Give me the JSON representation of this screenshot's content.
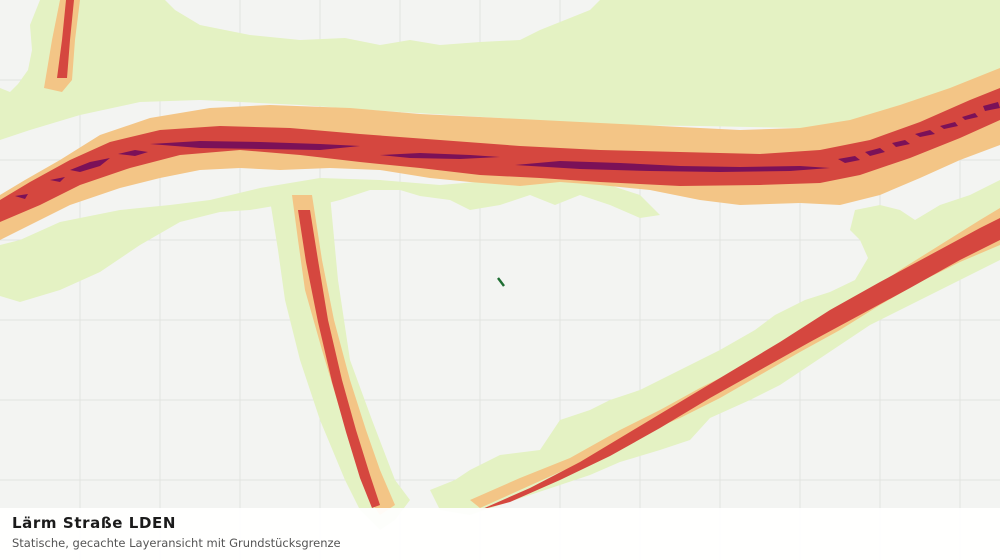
{
  "map": {
    "layer_title": "Lärm Straße LDEN",
    "layer_subtitle": "Statische, gecachte Layeransicht mit Grundstücksgrenze",
    "colors": {
      "background": "#f3f4f2",
      "grid": "#e1e3e0",
      "noise_low": "#e4f2c3",
      "noise_medium": "#f3c586",
      "noise_high": "#d5473f",
      "noise_very_high": "#7b1158",
      "parcel_boundary": "#1f6e33"
    }
  }
}
